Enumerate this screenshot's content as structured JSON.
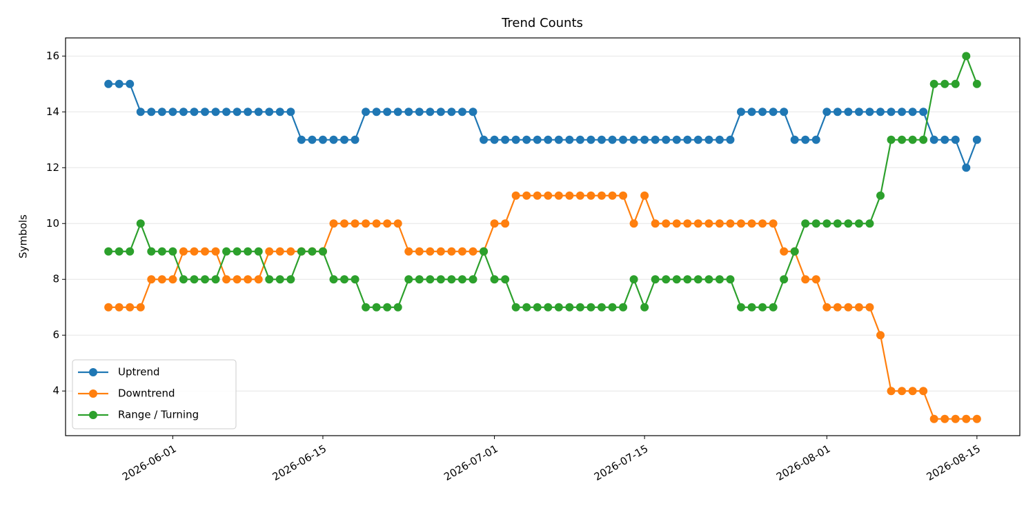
{
  "chart_data": {
    "type": "line",
    "title": "Trend Counts",
    "ylabel": "Symbols",
    "x": [
      "2026-05-26",
      "2026-05-27",
      "2026-05-28",
      "2026-05-29",
      "2026-05-30",
      "2026-05-31",
      "2026-06-01",
      "2026-06-02",
      "2026-06-03",
      "2026-06-04",
      "2026-06-05",
      "2026-06-06",
      "2026-06-07",
      "2026-06-08",
      "2026-06-09",
      "2026-06-10",
      "2026-06-11",
      "2026-06-12",
      "2026-06-13",
      "2026-06-14",
      "2026-06-15",
      "2026-06-16",
      "2026-06-17",
      "2026-06-18",
      "2026-06-19",
      "2026-06-20",
      "2026-06-21",
      "2026-06-22",
      "2026-06-23",
      "2026-06-24",
      "2026-06-25",
      "2026-06-26",
      "2026-06-27",
      "2026-06-28",
      "2026-06-29",
      "2026-06-30",
      "2026-07-01",
      "2026-07-02",
      "2026-07-03",
      "2026-07-04",
      "2026-07-05",
      "2026-07-06",
      "2026-07-07",
      "2026-07-08",
      "2026-07-09",
      "2026-07-10",
      "2026-07-11",
      "2026-07-12",
      "2026-07-13",
      "2026-07-14",
      "2026-07-15",
      "2026-07-16",
      "2026-07-17",
      "2026-07-18",
      "2026-07-19",
      "2026-07-20",
      "2026-07-21",
      "2026-07-22",
      "2026-07-23",
      "2026-07-24",
      "2026-07-25",
      "2026-07-26",
      "2026-07-27",
      "2026-07-28",
      "2026-07-29",
      "2026-07-30",
      "2026-07-31",
      "2026-08-01",
      "2026-08-02",
      "2026-08-03",
      "2026-08-04",
      "2026-08-05",
      "2026-08-06",
      "2026-08-07",
      "2026-08-08",
      "2026-08-09",
      "2026-08-10",
      "2026-08-11",
      "2026-08-12",
      "2026-08-13",
      "2026-08-14",
      "2026-08-15"
    ],
    "series": [
      {
        "name": "Uptrend",
        "color": "#1f77b4",
        "values": [
          15,
          15,
          15,
          14,
          14,
          14,
          14,
          14,
          14,
          14,
          14,
          14,
          14,
          14,
          14,
          14,
          14,
          14,
          13,
          13,
          13,
          13,
          13,
          13,
          14,
          14,
          14,
          14,
          14,
          14,
          14,
          14,
          14,
          14,
          14,
          13,
          13,
          13,
          13,
          13,
          13,
          13,
          13,
          13,
          13,
          13,
          13,
          13,
          13,
          13,
          13,
          13,
          13,
          13,
          13,
          13,
          13,
          13,
          13,
          14,
          14,
          14,
          14,
          14,
          13,
          13,
          13,
          14,
          14,
          14,
          14,
          14,
          14,
          14,
          14,
          14,
          14,
          13,
          13,
          13,
          12,
          13
        ]
      },
      {
        "name": "Downtrend",
        "color": "#ff7f0e",
        "values": [
          7,
          7,
          7,
          7,
          8,
          8,
          8,
          9,
          9,
          9,
          9,
          8,
          8,
          8,
          8,
          9,
          9,
          9,
          9,
          9,
          9,
          10,
          10,
          10,
          10,
          10,
          10,
          10,
          9,
          9,
          9,
          9,
          9,
          9,
          9,
          9,
          10,
          10,
          11,
          11,
          11,
          11,
          11,
          11,
          11,
          11,
          11,
          11,
          11,
          10,
          11,
          10,
          10,
          10,
          10,
          10,
          10,
          10,
          10,
          10,
          10,
          10,
          10,
          9,
          9,
          8,
          8,
          7,
          7,
          7,
          7,
          7,
          6,
          4,
          4,
          4,
          4,
          3,
          3,
          3,
          3,
          3
        ]
      },
      {
        "name": "Range / Turning",
        "color": "#2ca02c",
        "values": [
          9,
          9,
          9,
          10,
          9,
          9,
          9,
          8,
          8,
          8,
          8,
          9,
          9,
          9,
          9,
          8,
          8,
          8,
          9,
          9,
          9,
          8,
          8,
          8,
          7,
          7,
          7,
          7,
          8,
          8,
          8,
          8,
          8,
          8,
          8,
          9,
          8,
          8,
          7,
          7,
          7,
          7,
          7,
          7,
          7,
          7,
          7,
          7,
          7,
          8,
          7,
          8,
          8,
          8,
          8,
          8,
          8,
          8,
          8,
          7,
          7,
          7,
          7,
          8,
          9,
          10,
          10,
          10,
          10,
          10,
          10,
          10,
          11,
          13,
          13,
          13,
          13,
          15,
          15,
          15,
          16,
          15
        ]
      }
    ],
    "xlim": [
      "2026-05-22",
      "2026-08-19"
    ],
    "xticks": [
      "2026-06-01",
      "2026-06-15",
      "2026-07-01",
      "2026-07-15",
      "2026-08-01",
      "2026-08-15"
    ],
    "ylim": [
      2.4,
      16.65
    ],
    "yticks": [
      4,
      6,
      8,
      10,
      12,
      14,
      16
    ],
    "grid": true,
    "legend": "lower left"
  }
}
